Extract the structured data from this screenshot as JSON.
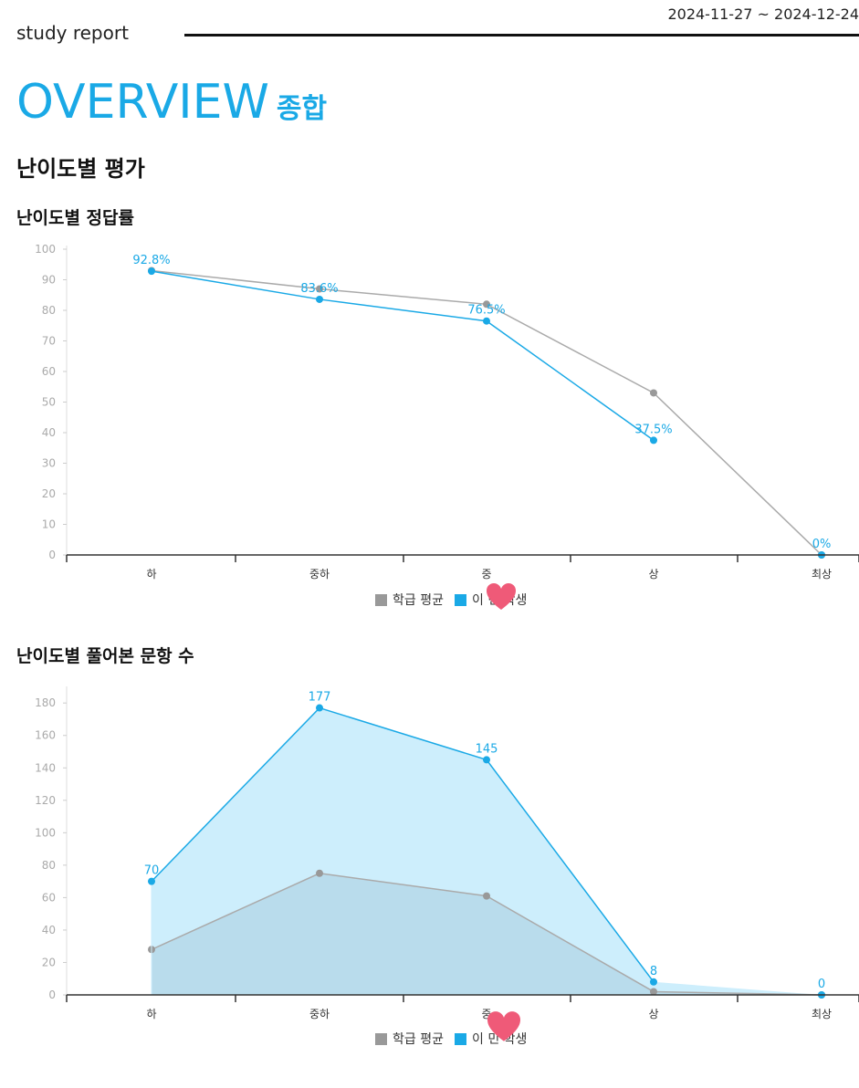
{
  "header": {
    "brand": "study report",
    "date_range": "2024-11-27 ~ 2024-12-24"
  },
  "overview": {
    "title": "OVERVIEW",
    "subtitle": "종합"
  },
  "section_title": "난이도별 평가",
  "colors": {
    "accent": "#1aa9e6",
    "series_class": "#999999",
    "series_student": "#1aa9e6"
  },
  "legend": {
    "class_avg": "학급 평균",
    "student": "이   민 학생"
  },
  "chart_data": [
    {
      "type": "line",
      "title": "난이도별 정답률",
      "categories": [
        "하",
        "중하",
        "중",
        "상",
        "최상"
      ],
      "ylim": [
        0,
        100
      ],
      "yticks": [
        0,
        10,
        20,
        30,
        40,
        50,
        60,
        70,
        80,
        90,
        100
      ],
      "grid": false,
      "legend": "bottom",
      "series": [
        {
          "name": "학급 평균",
          "values": [
            93,
            87,
            82,
            53,
            0
          ]
        },
        {
          "name": "이   민 학생",
          "values": [
            92.8,
            83.6,
            76.5,
            37.5,
            0
          ],
          "labels": [
            "92.8%",
            "83.6%",
            "76.5%",
            "37.5%",
            "0%"
          ]
        }
      ]
    },
    {
      "type": "area",
      "title": "난이도별 풀어본 문항 수",
      "categories": [
        "하",
        "중하",
        "중",
        "상",
        "최상"
      ],
      "ylim": [
        0,
        188
      ],
      "yticks": [
        0,
        20,
        40,
        60,
        80,
        100,
        120,
        140,
        160,
        180
      ],
      "grid": false,
      "legend": "bottom",
      "series": [
        {
          "name": "학급 평균",
          "values": [
            28,
            75,
            61,
            2,
            0
          ]
        },
        {
          "name": "이   민 학생",
          "values": [
            70,
            177,
            145,
            8,
            0
          ],
          "labels": [
            "70",
            "177",
            "145",
            "8",
            "0"
          ]
        }
      ]
    }
  ]
}
